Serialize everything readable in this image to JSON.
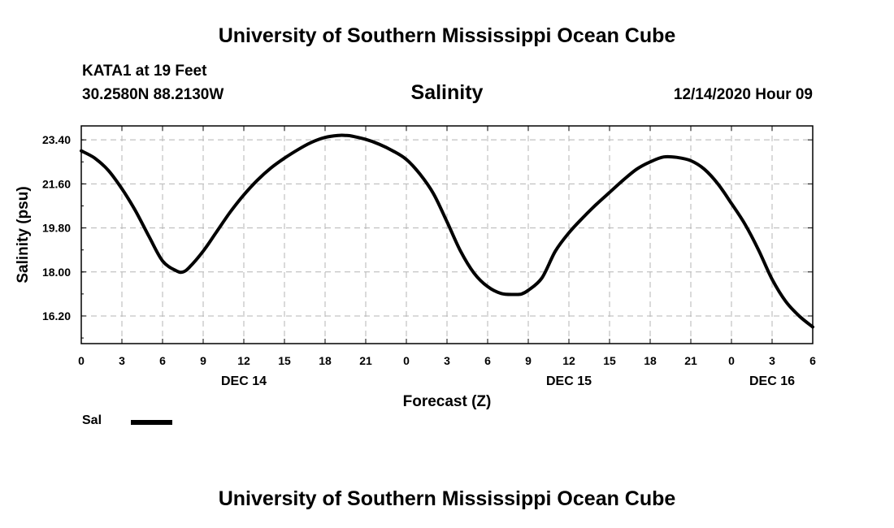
{
  "header": {
    "title": "University of Southern Mississippi Ocean Cube",
    "station": "KATA1 at 19 Feet",
    "coords": "30.2580N 88.2130W",
    "run_time": "12/14/2020 Hour 09"
  },
  "footer": {
    "title": "University of Southern Mississippi Ocean Cube"
  },
  "legend": {
    "label": "Sal",
    "color": "#000000"
  },
  "chart_data": {
    "type": "line",
    "title": "Salinity",
    "xlabel": "Forecast (Z)",
    "ylabel": "Salinity (psu)",
    "xlim": [
      0,
      54
    ],
    "ylim": [
      15.07,
      23.97
    ],
    "yticks": [
      16.2,
      18.0,
      19.8,
      21.6,
      23.4
    ],
    "ytick_labels": [
      "16.20",
      "18.00",
      "19.80",
      "21.60",
      "23.40"
    ],
    "xticks": [
      0,
      3,
      6,
      9,
      12,
      15,
      18,
      21,
      24,
      27,
      30,
      33,
      36,
      39,
      42,
      45,
      48,
      51,
      54
    ],
    "xtick_labels": [
      "0",
      "3",
      "6",
      "9",
      "12",
      "15",
      "18",
      "21",
      "0",
      "3",
      "6",
      "9",
      "12",
      "15",
      "18",
      "21",
      "0",
      "3",
      "6"
    ],
    "date_labels": [
      {
        "x": 12,
        "label": "DEC 14"
      },
      {
        "x": 36,
        "label": "DEC 15"
      },
      {
        "x": 51,
        "label": "DEC 16"
      }
    ],
    "grid": true,
    "series": [
      {
        "name": "Sal",
        "color": "#000000",
        "x": [
          0,
          1,
          2,
          3,
          4,
          5,
          6,
          7,
          7.5,
          8,
          9,
          10,
          11,
          12,
          13,
          14,
          15,
          16,
          17,
          18,
          19,
          19.5,
          20,
          21,
          22,
          23,
          24,
          25,
          26,
          27,
          28,
          29,
          30,
          31,
          32,
          32.5,
          33,
          34,
          35,
          36,
          37,
          38,
          39,
          40,
          41,
          42,
          43,
          44,
          45,
          46,
          47,
          48,
          49,
          50,
          51,
          52,
          53,
          54
        ],
        "values": [
          22.95,
          22.65,
          22.15,
          21.4,
          20.5,
          19.45,
          18.45,
          18.05,
          18.0,
          18.2,
          18.85,
          19.65,
          20.45,
          21.15,
          21.75,
          22.25,
          22.65,
          23.0,
          23.3,
          23.5,
          23.58,
          23.58,
          23.55,
          23.42,
          23.22,
          22.95,
          22.6,
          22.0,
          21.2,
          20.05,
          18.85,
          17.95,
          17.4,
          17.12,
          17.08,
          17.1,
          17.25,
          17.75,
          18.85,
          19.6,
          20.2,
          20.75,
          21.25,
          21.75,
          22.2,
          22.5,
          22.7,
          22.68,
          22.55,
          22.2,
          21.6,
          20.8,
          19.95,
          18.9,
          17.7,
          16.8,
          16.2,
          15.75
        ]
      }
    ]
  }
}
